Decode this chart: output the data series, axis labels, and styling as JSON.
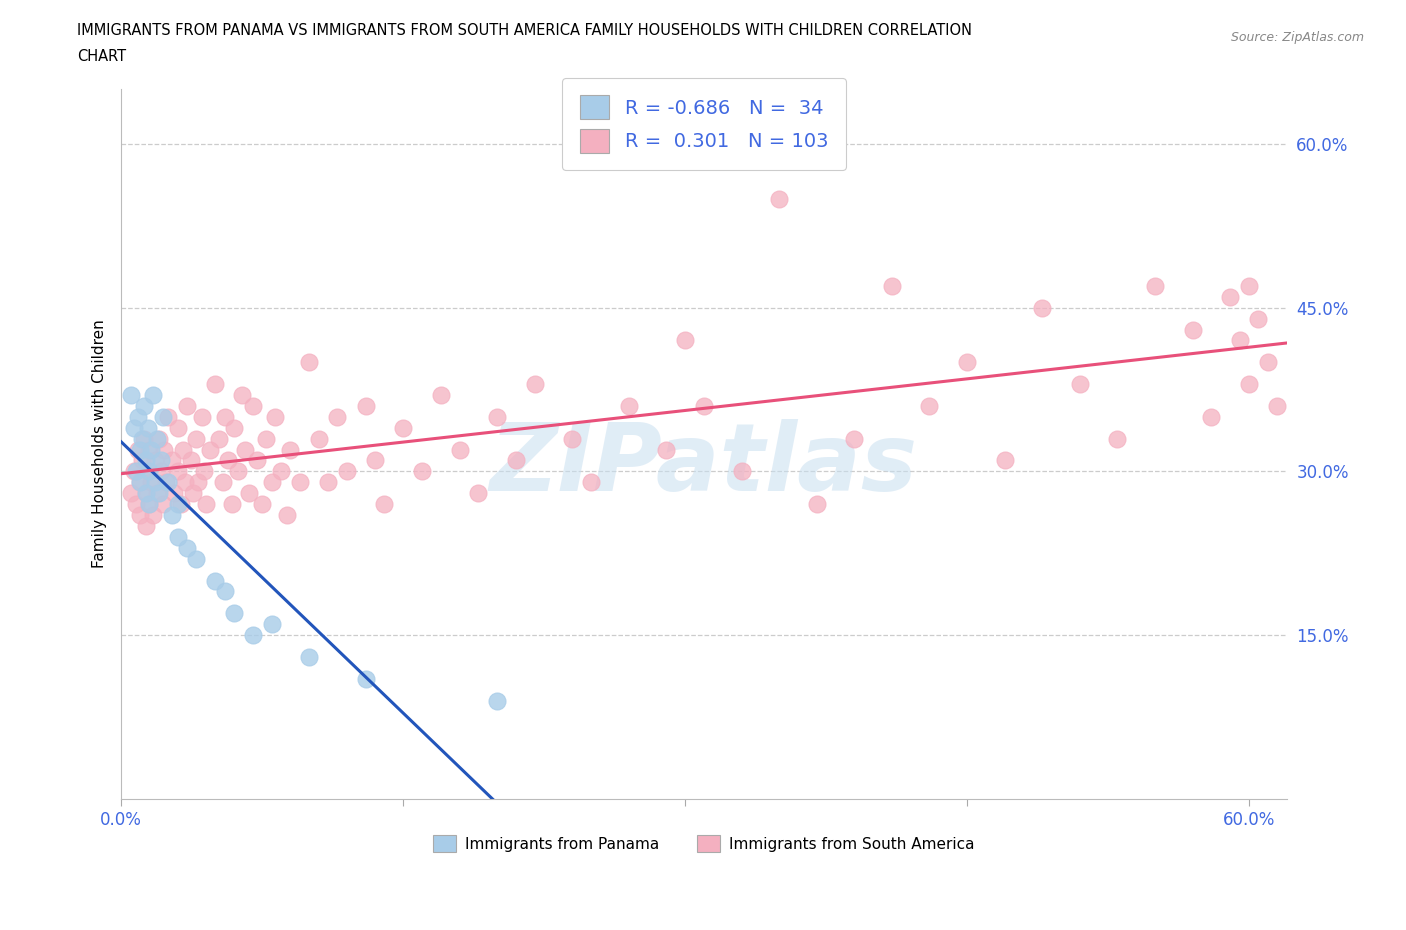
{
  "title_line1": "IMMIGRANTS FROM PANAMA VS IMMIGRANTS FROM SOUTH AMERICA FAMILY HOUSEHOLDS WITH CHILDREN CORRELATION",
  "title_line2": "CHART",
  "source": "Source: ZipAtlas.com",
  "ylabel": "Family Households with Children",
  "xlim": [
    0.0,
    0.62
  ],
  "ylim": [
    0.0,
    0.65
  ],
  "yticks": [
    0.15,
    0.3,
    0.45,
    0.6
  ],
  "xticks": [
    0.0,
    0.15,
    0.3,
    0.45,
    0.6
  ],
  "panama_R": -0.686,
  "panama_N": 34,
  "sa_R": 0.301,
  "sa_N": 103,
  "panama_color": "#a8cce8",
  "sa_color": "#f4b0c0",
  "panama_line_color": "#2255bb",
  "sa_line_color": "#e8507a",
  "tick_color": "#4169E1",
  "watermark_color": "#c8dff0",
  "grid_color": "#cccccc",
  "panama_x": [
    0.005,
    0.007,
    0.008,
    0.009,
    0.01,
    0.01,
    0.011,
    0.012,
    0.013,
    0.013,
    0.014,
    0.015,
    0.015,
    0.016,
    0.017,
    0.018,
    0.019,
    0.02,
    0.021,
    0.022,
    0.025,
    0.027,
    0.03,
    0.03,
    0.035,
    0.04,
    0.05,
    0.055,
    0.06,
    0.07,
    0.08,
    0.1,
    0.13,
    0.2
  ],
  "panama_y": [
    0.37,
    0.34,
    0.3,
    0.35,
    0.32,
    0.29,
    0.33,
    0.36,
    0.31,
    0.28,
    0.34,
    0.3,
    0.27,
    0.32,
    0.37,
    0.29,
    0.33,
    0.28,
    0.31,
    0.35,
    0.29,
    0.26,
    0.27,
    0.24,
    0.23,
    0.22,
    0.2,
    0.19,
    0.17,
    0.15,
    0.16,
    0.13,
    0.11,
    0.09
  ],
  "sa_x": [
    0.005,
    0.007,
    0.008,
    0.009,
    0.01,
    0.01,
    0.011,
    0.012,
    0.013,
    0.013,
    0.014,
    0.015,
    0.015,
    0.016,
    0.017,
    0.018,
    0.019,
    0.02,
    0.021,
    0.022,
    0.023,
    0.024,
    0.025,
    0.027,
    0.028,
    0.03,
    0.03,
    0.032,
    0.033,
    0.034,
    0.035,
    0.037,
    0.038,
    0.04,
    0.041,
    0.043,
    0.044,
    0.045,
    0.047,
    0.05,
    0.052,
    0.054,
    0.055,
    0.057,
    0.059,
    0.06,
    0.062,
    0.064,
    0.066,
    0.068,
    0.07,
    0.072,
    0.075,
    0.077,
    0.08,
    0.082,
    0.085,
    0.088,
    0.09,
    0.095,
    0.1,
    0.105,
    0.11,
    0.115,
    0.12,
    0.13,
    0.135,
    0.14,
    0.15,
    0.16,
    0.17,
    0.18,
    0.19,
    0.2,
    0.21,
    0.22,
    0.24,
    0.25,
    0.27,
    0.29,
    0.3,
    0.31,
    0.33,
    0.35,
    0.37,
    0.39,
    0.41,
    0.43,
    0.45,
    0.47,
    0.49,
    0.51,
    0.53,
    0.55,
    0.57,
    0.58,
    0.59,
    0.595,
    0.6,
    0.6,
    0.605,
    0.61,
    0.615
  ],
  "sa_y": [
    0.28,
    0.3,
    0.27,
    0.32,
    0.29,
    0.26,
    0.31,
    0.33,
    0.28,
    0.25,
    0.3,
    0.27,
    0.32,
    0.29,
    0.26,
    0.31,
    0.28,
    0.33,
    0.3,
    0.27,
    0.32,
    0.29,
    0.35,
    0.31,
    0.28,
    0.34,
    0.3,
    0.27,
    0.32,
    0.29,
    0.36,
    0.31,
    0.28,
    0.33,
    0.29,
    0.35,
    0.3,
    0.27,
    0.32,
    0.38,
    0.33,
    0.29,
    0.35,
    0.31,
    0.27,
    0.34,
    0.3,
    0.37,
    0.32,
    0.28,
    0.36,
    0.31,
    0.27,
    0.33,
    0.29,
    0.35,
    0.3,
    0.26,
    0.32,
    0.29,
    0.4,
    0.33,
    0.29,
    0.35,
    0.3,
    0.36,
    0.31,
    0.27,
    0.34,
    0.3,
    0.37,
    0.32,
    0.28,
    0.35,
    0.31,
    0.38,
    0.33,
    0.29,
    0.36,
    0.32,
    0.42,
    0.36,
    0.3,
    0.55,
    0.27,
    0.33,
    0.47,
    0.36,
    0.4,
    0.31,
    0.45,
    0.38,
    0.33,
    0.47,
    0.43,
    0.35,
    0.46,
    0.42,
    0.38,
    0.47,
    0.44,
    0.4,
    0.36
  ]
}
